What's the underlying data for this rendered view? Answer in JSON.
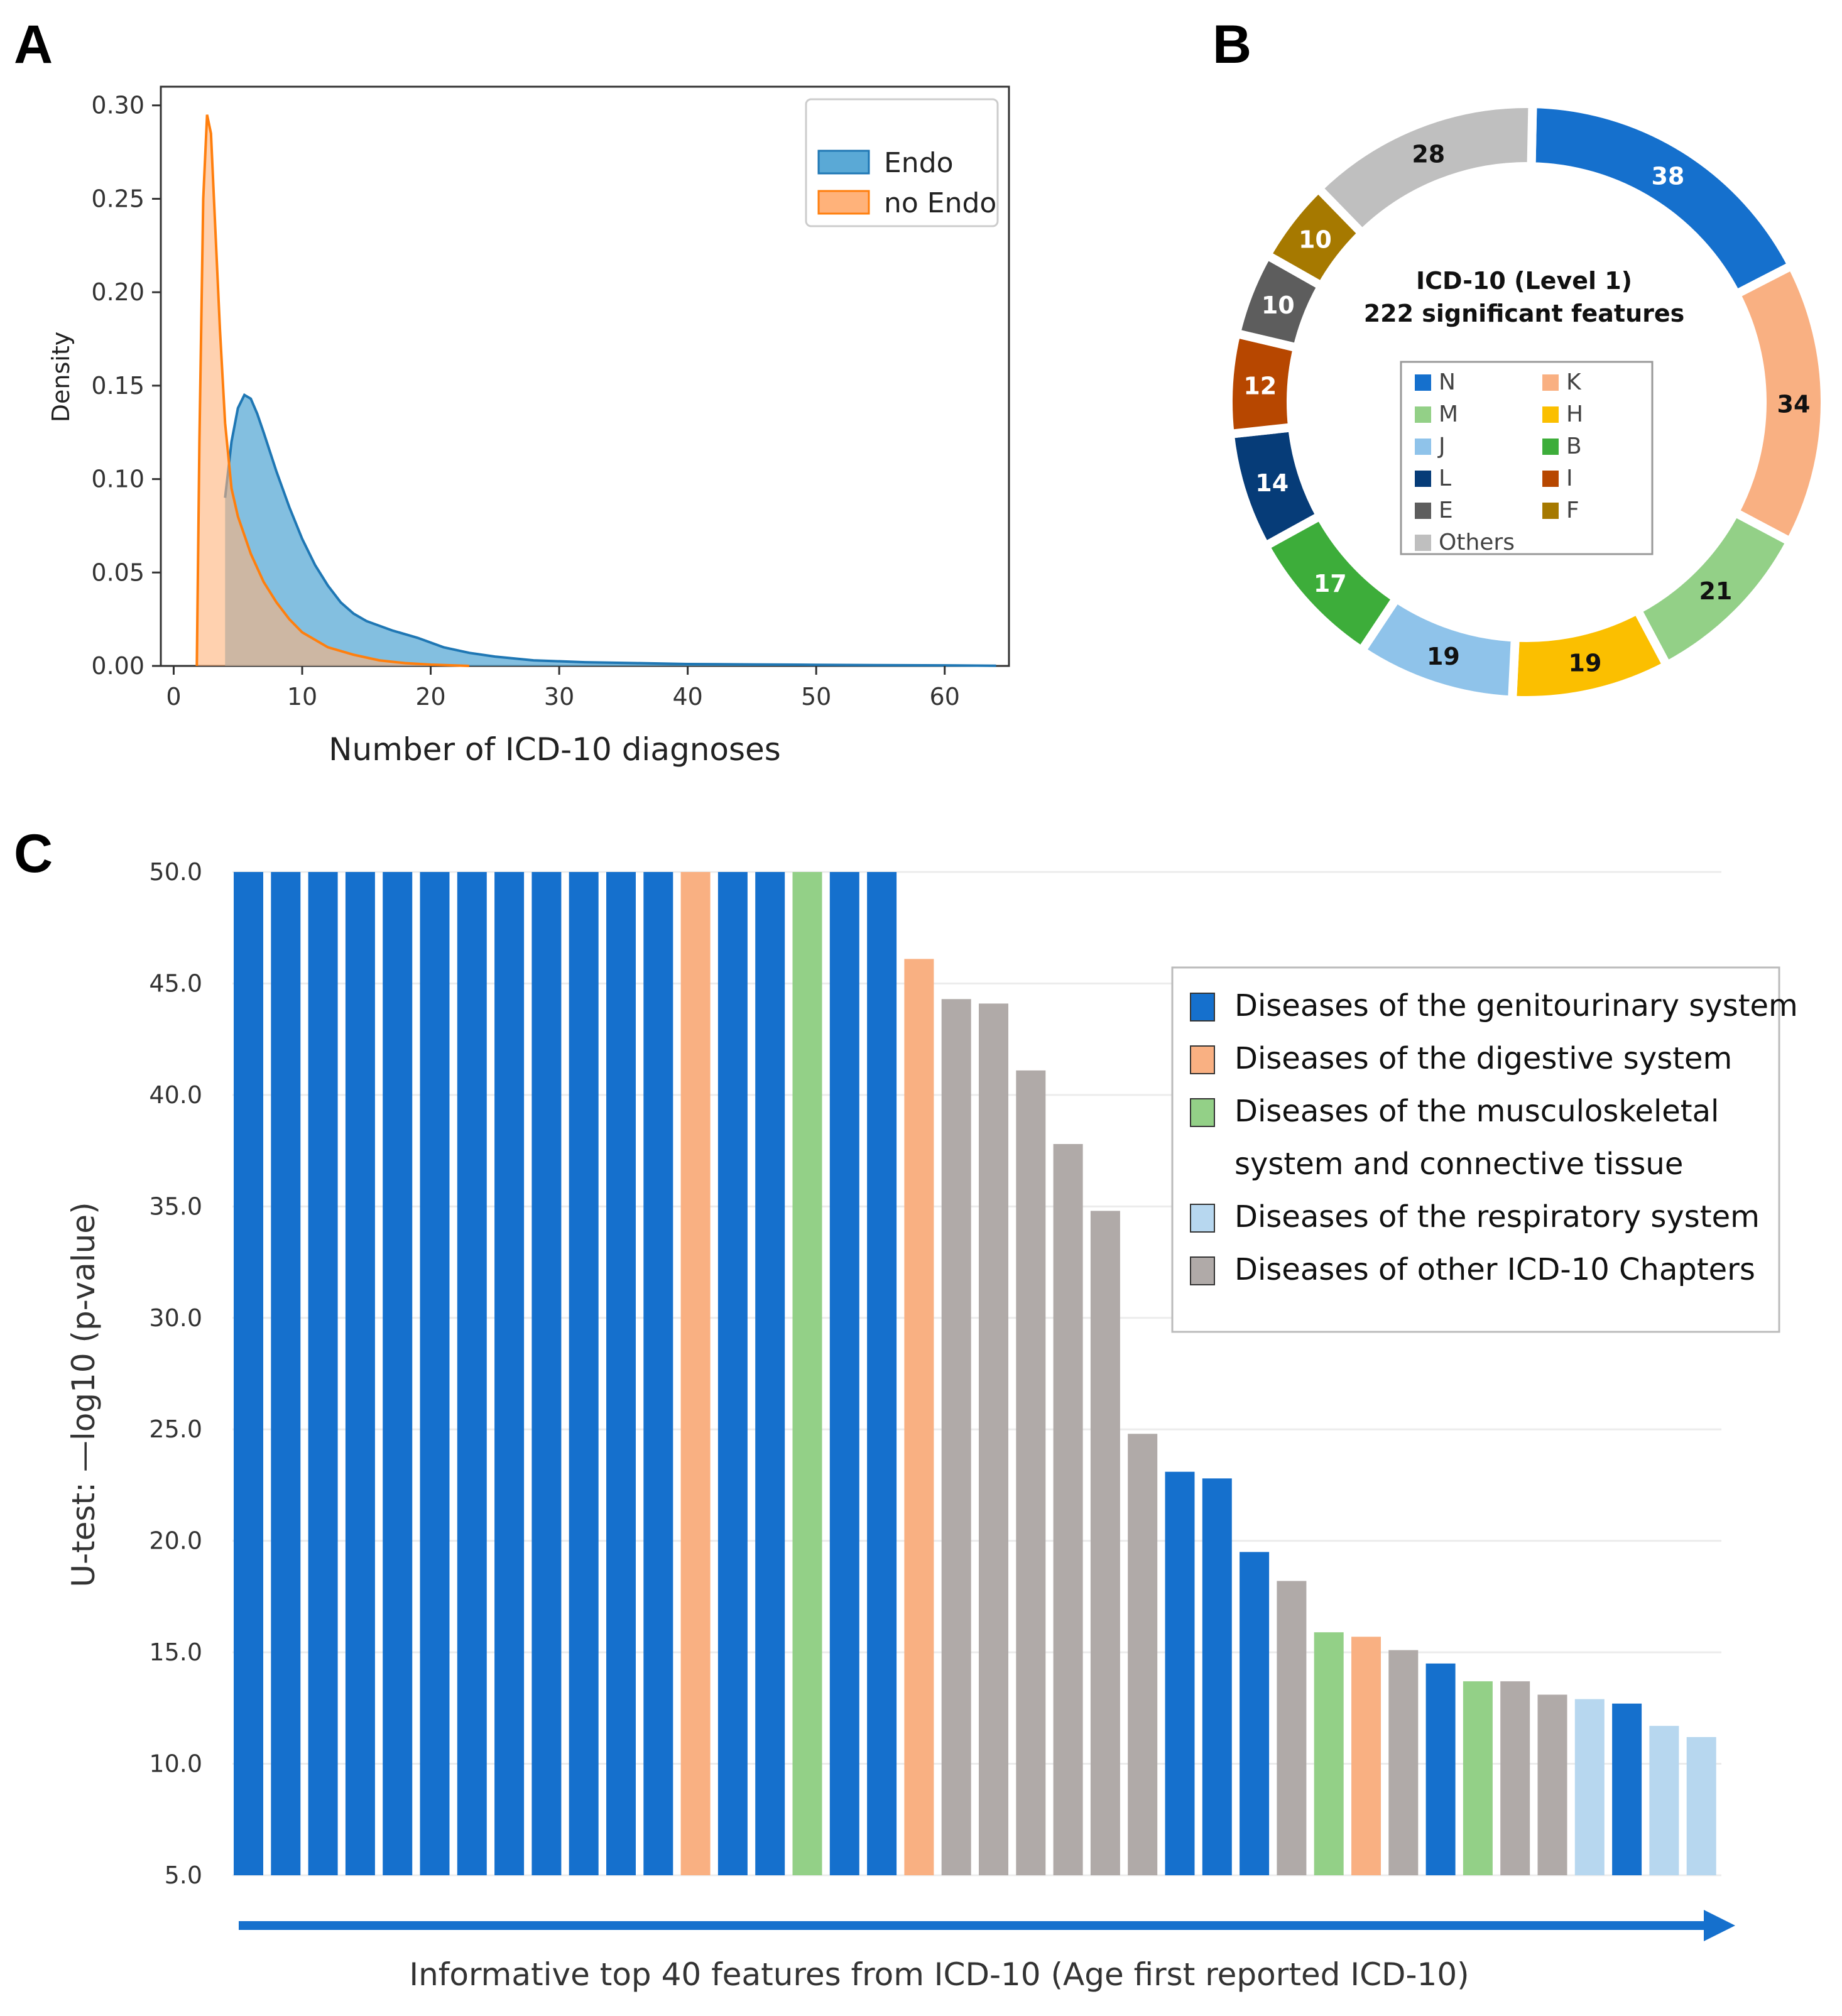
{
  "panel_labels": {
    "a": "A",
    "b": "B",
    "c": "C"
  },
  "colors": {
    "endo_fill": "#5aa9d6",
    "endo_line": "#1f77b4",
    "noendo_fill": "#ffb27a",
    "noendo_line": "#ff7f0e",
    "N": "#1570cd",
    "K": "#f9b082",
    "M": "#93d087",
    "H": "#fbbf00",
    "J": "#8fc3ea",
    "B": "#3dad3a",
    "L": "#063c78",
    "I": "#b74700",
    "E": "#5d5d5d",
    "F": "#a67900",
    "Others": "#bfbfbf",
    "genito": "#1570cd",
    "digestive": "#f9b082",
    "musculo": "#93d087",
    "respiratory": "#b7d7ef",
    "other": "#b0aaa8"
  },
  "chart_data": [
    {
      "type": "area",
      "panel": "A",
      "xlabel": "Number of ICD-10 diagnoses",
      "ylabel": "Density",
      "xlim": [
        -1,
        65
      ],
      "ylim": [
        0,
        0.31
      ],
      "xticks": [
        0,
        10,
        20,
        30,
        40,
        50,
        60
      ],
      "yticks": [
        0.0,
        0.05,
        0.1,
        0.15,
        0.2,
        0.25,
        0.3
      ],
      "xtick_labels": [
        "0",
        "10",
        "20",
        "30",
        "40",
        "50",
        "60"
      ],
      "ytick_labels": [
        "0.00",
        "0.05",
        "0.10",
        "0.15",
        "0.20",
        "0.25",
        "0.30"
      ],
      "legend": [
        "Endo",
        "no Endo"
      ],
      "legend_position": "top-right",
      "series": [
        {
          "name": "Endo",
          "x": [
            4,
            4.5,
            5,
            5.5,
            6,
            6.5,
            7,
            8,
            9,
            10,
            11,
            12,
            13,
            14,
            15,
            17,
            19,
            21,
            23,
            25,
            28,
            32,
            36,
            40,
            45,
            50,
            55,
            60,
            64
          ],
          "y": [
            0.09,
            0.12,
            0.138,
            0.145,
            0.143,
            0.135,
            0.125,
            0.104,
            0.085,
            0.068,
            0.054,
            0.043,
            0.034,
            0.028,
            0.024,
            0.019,
            0.015,
            0.01,
            0.007,
            0.005,
            0.003,
            0.002,
            0.0015,
            0.001,
            0.0008,
            0.0006,
            0.0004,
            0.0003,
            0.0001
          ]
        },
        {
          "name": "no Endo",
          "x": [
            1.8,
            2.0,
            2.3,
            2.6,
            2.9,
            3.2,
            3.6,
            4.0,
            4.5,
            5,
            6,
            7,
            8,
            9,
            10,
            12,
            14,
            16,
            18,
            20,
            23
          ],
          "y": [
            0.0,
            0.12,
            0.25,
            0.295,
            0.285,
            0.24,
            0.18,
            0.13,
            0.095,
            0.08,
            0.06,
            0.045,
            0.034,
            0.025,
            0.018,
            0.01,
            0.006,
            0.003,
            0.0015,
            0.0007,
            0.0
          ]
        }
      ]
    },
    {
      "type": "pie",
      "panel": "B",
      "title": "ICD-10 (Level 1)",
      "subtitle": "222 significant features",
      "categories": [
        "N",
        "K",
        "M",
        "H",
        "J",
        "B",
        "L",
        "I",
        "E",
        "F",
        "Others"
      ],
      "values": [
        38,
        34,
        21,
        19,
        19,
        17,
        14,
        12,
        10,
        10,
        28
      ],
      "label_colors": [
        "#ffffff",
        "#111111",
        "#111111",
        "#111111",
        "#111111",
        "#ffffff",
        "#ffffff",
        "#ffffff",
        "#ffffff",
        "#ffffff",
        "#111111"
      ],
      "legend_left": [
        "N",
        "M",
        "J",
        "L",
        "E",
        "Others"
      ],
      "legend_right": [
        "K",
        "H",
        "B",
        "I",
        "F"
      ]
    },
    {
      "type": "bar",
      "panel": "C",
      "xlabel": "Informative top 40 features from ICD-10 (Age first reported ICD-10)",
      "ylabel": "U-test:  —log10 (p-value)",
      "ylim": [
        5,
        50
      ],
      "yticks": [
        5,
        10,
        15,
        20,
        25,
        30,
        35,
        40,
        45,
        50
      ],
      "ytick_labels": [
        "5.0",
        "10.0",
        "15.0",
        "20.0",
        "25.0",
        "30.0",
        "35.0",
        "40.0",
        "45.0",
        "50.0"
      ],
      "values": [
        50,
        50,
        50,
        50,
        50,
        50,
        50,
        50,
        50,
        50,
        50,
        50,
        50,
        50,
        50,
        50,
        50,
        50,
        46.1,
        44.3,
        44.1,
        41.1,
        37.8,
        34.8,
        24.8,
        23.1,
        22.8,
        19.5,
        18.2,
        15.9,
        15.7,
        15.1,
        14.5,
        13.7,
        13.7,
        13.1,
        12.9,
        12.7,
        11.7,
        11.2
      ],
      "groups": [
        "genito",
        "genito",
        "genito",
        "genito",
        "genito",
        "genito",
        "genito",
        "genito",
        "genito",
        "genito",
        "genito",
        "genito",
        "digestive",
        "genito",
        "genito",
        "musculo",
        "genito",
        "genito",
        "digestive",
        "other",
        "other",
        "other",
        "other",
        "other",
        "other",
        "genito",
        "genito",
        "genito",
        "other",
        "musculo",
        "digestive",
        "other",
        "genito",
        "musculo",
        "other",
        "other",
        "respiratory",
        "genito",
        "respiratory",
        "respiratory"
      ],
      "legend": [
        {
          "key": "genito",
          "lines": [
            "Diseases of the genitourinary system"
          ]
        },
        {
          "key": "digestive",
          "lines": [
            "Diseases of the digestive system"
          ]
        },
        {
          "key": "musculo",
          "lines": [
            "Diseases of the musculoskeletal",
            "system and connective tissue"
          ]
        },
        {
          "key": "respiratory",
          "lines": [
            "Diseases of the respiratory system"
          ]
        },
        {
          "key": "other",
          "lines": [
            "Diseases of other ICD-10 Chapters"
          ]
        }
      ]
    }
  ]
}
